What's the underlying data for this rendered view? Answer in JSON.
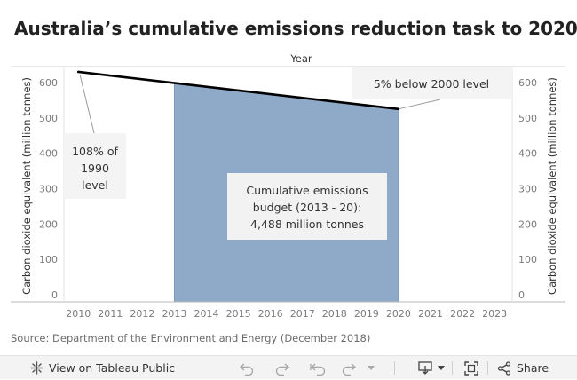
{
  "title": "Australia’s cumulative emissions reduction task to 2020",
  "source": "Source: Department of the Environment and Energy (December 2018)",
  "chart_data": {
    "type": "area",
    "title": "Australia’s cumulative emissions reduction task to 2020",
    "xlabel": "Year",
    "ylabel": "Carbon dioxide equivalent (million tonnes)",
    "y2label": "Carbon dioxide equivalent (million tonnes)",
    "x_ticks": [
      "2010",
      "2011",
      "2012",
      "2013",
      "2014",
      "2015",
      "2016",
      "2017",
      "2018",
      "2019",
      "2020",
      "2021",
      "2022",
      "2023"
    ],
    "y_ticks": [
      "0",
      "100",
      "200",
      "300",
      "400",
      "500",
      "600"
    ],
    "xlim": [
      2009.55,
      2023.55
    ],
    "ylim": [
      -20,
      645
    ],
    "grid": false,
    "series": [
      {
        "values": [
          [
            2010,
            630
          ],
          [
            2020,
            525
          ]
        ]
      }
    ],
    "budget_area": {
      "x_start": 2013,
      "x_end": 2020,
      "color": "#8faac9"
    },
    "annotations": {
      "left": [
        "108% of",
        "1990",
        "level"
      ],
      "right": [
        "5% below 2000 level"
      ],
      "budget": [
        "Cumulative emissions",
        "budget (2013 - 20):",
        "4,488 million tonnes"
      ]
    }
  },
  "footer": {
    "view_label": "View on Tableau Public",
    "share_label": "Share",
    "icons": {
      "view": "tableau-icon",
      "undo": "undo-icon",
      "redo": "redo-icon",
      "revert": "revert-icon",
      "refresh": "refresh-icon",
      "download": "download-icon",
      "fullscreen": "fullscreen-icon",
      "share": "share-icon"
    }
  }
}
